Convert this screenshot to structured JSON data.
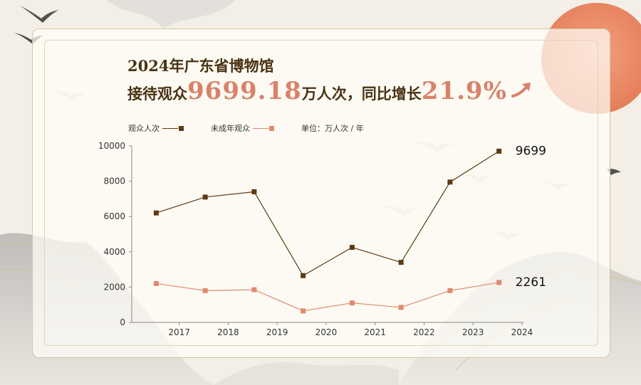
{
  "header": {
    "title": "2024年广东省博物馆",
    "prefix": "接待观众",
    "visitors": "9699.18",
    "unit": "万人次，同比增长",
    "growth": "21.9%"
  },
  "legend": {
    "unit_label": "单位：万人次 / 年"
  },
  "colors": {
    "visitors": "#5c3a12",
    "minors": "#e08a6f",
    "accent": "#d9826a",
    "title": "#4a3213"
  },
  "chart_data": {
    "type": "line",
    "x_ticks": [
      "2017",
      "2018",
      "2019",
      "2020",
      "2021",
      "2022",
      "2023",
      "2024"
    ],
    "y_ticks": [
      "0",
      "2000",
      "4000",
      "6000",
      "8000",
      "10000"
    ],
    "ylim": [
      0,
      10000
    ],
    "grid": false,
    "legend_position": "top-left",
    "series": [
      {
        "name": "观众人次",
        "color": "#5c3a12",
        "values": [
          6200,
          7100,
          7400,
          2650,
          4250,
          3400,
          7950,
          9699
        ],
        "end_label": "9699"
      },
      {
        "name": "未成年观众",
        "color": "#e08a6f",
        "values": [
          2200,
          1800,
          1850,
          650,
          1100,
          850,
          1800,
          2261
        ],
        "end_label": "2261"
      }
    ]
  }
}
